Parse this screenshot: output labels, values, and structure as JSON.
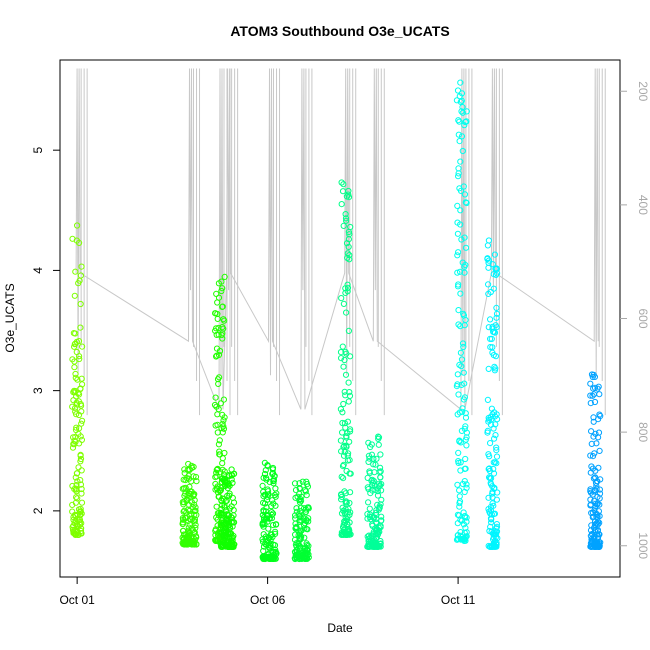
{
  "chart_data": {
    "type": "scatter",
    "title": "ATOM3 Southbound O3e_UCATS",
    "xlabel": "Date",
    "ylabel": "O3e_UCATS",
    "x_ticks": [
      {
        "day": 1,
        "label": "Oct 01"
      },
      {
        "day": 6,
        "label": "Oct 06"
      },
      {
        "day": 11,
        "label": "Oct 11"
      }
    ],
    "xlim_days": [
      0.55,
      15.25
    ],
    "ylim": [
      1.45,
      5.75
    ],
    "y_ticks": [
      2,
      3,
      4,
      5
    ],
    "secondary_axis": {
      "description": "pressure (inverted, grey trace)",
      "ticks": [
        200,
        400,
        600,
        800,
        1000
      ],
      "range": [
        145,
        1055
      ],
      "inverted": true
    },
    "grid": false,
    "legend": "none",
    "series": [
      {
        "day": 1.0,
        "y_min": 1.8,
        "y_max": 4.4,
        "color": "#7fff00"
      },
      {
        "day": 3.95,
        "y_min": 1.72,
        "y_max": 2.4,
        "color": "#33ff00"
      },
      {
        "day": 4.75,
        "y_min": 1.75,
        "y_max": 4.0,
        "color": "#22ff00"
      },
      {
        "day": 4.95,
        "y_min": 1.7,
        "y_max": 2.35,
        "color": "#11ff00"
      },
      {
        "day": 6.05,
        "y_min": 1.6,
        "y_max": 2.4,
        "color": "#00ff1a"
      },
      {
        "day": 6.9,
        "y_min": 1.6,
        "y_max": 2.25,
        "color": "#00ff33"
      },
      {
        "day": 8.05,
        "y_min": 1.8,
        "y_max": 4.8,
        "color": "#00ff88"
      },
      {
        "day": 8.8,
        "y_min": 1.7,
        "y_max": 2.65,
        "color": "#00ff99"
      },
      {
        "day": 11.1,
        "y_min": 1.75,
        "y_max": 5.6,
        "color": "#00ffee"
      },
      {
        "day": 11.9,
        "y_min": 1.7,
        "y_max": 4.25,
        "color": "#00f5ff"
      },
      {
        "day": 14.6,
        "y_min": 1.7,
        "y_max": 3.2,
        "color": "#00a2ff"
      }
    ],
    "pressure_trace_color": "#c8c8c8"
  }
}
